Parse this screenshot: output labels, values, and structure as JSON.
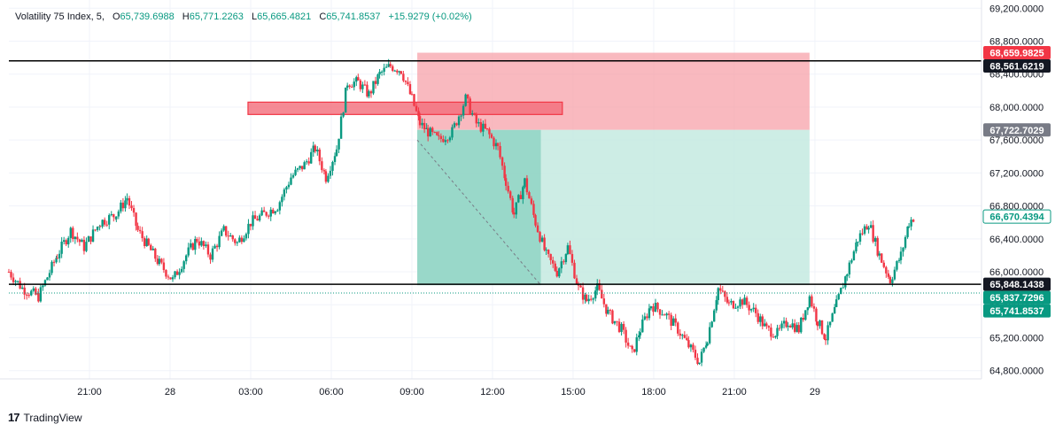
{
  "legend": {
    "symbol": "Volatility 75 Index, 5,",
    "o_label": "O",
    "open": "65,739.6988",
    "h_label": "H",
    "high": "65,771.2263",
    "l_label": "L",
    "low": "65,665.4821",
    "c_label": "C",
    "close": "65,741.8537",
    "change": "+15.9279 (+0.02%)"
  },
  "brand": {
    "name": "TradingView",
    "logo_icon": "tradingview-logo-icon"
  },
  "colors": {
    "up": "#089981",
    "down": "#f23645",
    "line": "#000000",
    "stop_zone": "#f7a1a9",
    "target_zone": "#8fd3c4",
    "target_zone_light": "#c8ebe2",
    "supply_box": "#f26d7b"
  },
  "chart_data": {
    "type": "candlestick",
    "instrument": "Volatility 75 Index",
    "timeframe": "5",
    "y_axis": {
      "range": [
        64700,
        69300
      ],
      "ticks": [
        "69,200.0000",
        "68,800.0000",
        "68,400.0000",
        "68,000.0000",
        "67,600.0000",
        "67,200.0000",
        "66,800.0000",
        "66,400.0000",
        "66,000.0000",
        "65,600.0000",
        "65,200.0000",
        "64,800.0000"
      ],
      "tick_values": [
        69200,
        68800,
        68400,
        68000,
        67600,
        67200,
        66800,
        66400,
        66000,
        65600,
        65200,
        64800
      ]
    },
    "x_axis": {
      "ticks": [
        "21:00",
        "28",
        "03:00",
        "06:00",
        "09:00",
        "12:00",
        "15:00",
        "18:00",
        "21:00",
        "29"
      ],
      "tick_hours": [
        21,
        24,
        27,
        30,
        33,
        36,
        39,
        42,
        45,
        48
      ],
      "range_hours": [
        18.0,
        54.2
      ]
    },
    "horizontal_lines": [
      {
        "price": 68561.6219,
        "label": "68,561.6219"
      },
      {
        "price": 65848.1438,
        "label": "65,848.1438"
      }
    ],
    "price_labels": [
      {
        "price": 68659.9825,
        "label": "68,659.9825",
        "style": "red"
      },
      {
        "price": 68561.6219,
        "label": "68,561.6219",
        "style": "black"
      },
      {
        "price": 67722.7029,
        "label": "67,722.7029",
        "style": "gray"
      },
      {
        "price": 66670.4394,
        "label": "66,670.4394",
        "style": "green-outline"
      },
      {
        "price": 65848.1438,
        "label": "65,848.1438",
        "style": "black"
      },
      {
        "price": 65837.7296,
        "label": "65,837.7296",
        "style": "green"
      },
      {
        "price": 65741.8537,
        "label": "65,741.8537",
        "style": "green"
      }
    ],
    "short_position": {
      "entry": 67722.7029,
      "stop": 68659.9825,
      "target": 65837.7296,
      "start_hour": 33.2,
      "end_hour": 47.8,
      "filled_until_hour": 37.8
    },
    "supply_zone": {
      "top": 68060,
      "bottom": 67910,
      "start_hour": 26.9,
      "end_hour": 38.6
    },
    "ohlc_path": [
      [
        18.0,
        66000
      ],
      [
        18.5,
        65800
      ],
      [
        19.1,
        65700
      ],
      [
        19.8,
        66200
      ],
      [
        20.3,
        66500
      ],
      [
        20.8,
        66300
      ],
      [
        21.4,
        66600
      ],
      [
        22.0,
        66700
      ],
      [
        22.4,
        66900
      ],
      [
        22.8,
        66500
      ],
      [
        23.2,
        66300
      ],
      [
        23.6,
        66100
      ],
      [
        24.1,
        65900
      ],
      [
        24.6,
        66200
      ],
      [
        25.0,
        66400
      ],
      [
        25.5,
        66200
      ],
      [
        26.0,
        66500
      ],
      [
        26.5,
        66350
      ],
      [
        27.0,
        66600
      ],
      [
        27.5,
        66700
      ],
      [
        28.0,
        66800
      ],
      [
        28.5,
        67150
      ],
      [
        29.0,
        67300
      ],
      [
        29.4,
        67500
      ],
      [
        29.8,
        67150
      ],
      [
        30.2,
        67500
      ],
      [
        30.6,
        68300
      ],
      [
        31.0,
        68300
      ],
      [
        31.4,
        68150
      ],
      [
        31.8,
        68400
      ],
      [
        32.2,
        68500
      ],
      [
        32.6,
        68450
      ],
      [
        33.0,
        68100
      ],
      [
        33.3,
        67800
      ],
      [
        33.6,
        67700
      ],
      [
        34.0,
        67600
      ],
      [
        34.5,
        67700
      ],
      [
        35.0,
        68100
      ],
      [
        35.4,
        67800
      ],
      [
        35.8,
        67700
      ],
      [
        36.2,
        67500
      ],
      [
        36.5,
        67100
      ],
      [
        36.8,
        66700
      ],
      [
        37.2,
        67100
      ],
      [
        37.6,
        66600
      ],
      [
        38.0,
        66200
      ],
      [
        38.4,
        66000
      ],
      [
        38.8,
        66300
      ],
      [
        39.2,
        65800
      ],
      [
        39.5,
        65650
      ],
      [
        39.9,
        65800
      ],
      [
        40.3,
        65500
      ],
      [
        40.8,
        65300
      ],
      [
        41.2,
        65000
      ],
      [
        41.5,
        65300
      ],
      [
        41.9,
        65600
      ],
      [
        42.4,
        65500
      ],
      [
        42.9,
        65300
      ],
      [
        43.3,
        65100
      ],
      [
        43.7,
        64900
      ],
      [
        44.0,
        65200
      ],
      [
        44.4,
        65800
      ],
      [
        44.8,
        65600
      ],
      [
        45.3,
        65650
      ],
      [
        45.8,
        65500
      ],
      [
        46.2,
        65300
      ],
      [
        46.6,
        65250
      ],
      [
        47.0,
        65400
      ],
      [
        47.4,
        65300
      ],
      [
        47.8,
        65700
      ],
      [
        48.1,
        65400
      ],
      [
        48.4,
        65200
      ],
      [
        48.8,
        65600
      ],
      [
        49.2,
        66000
      ],
      [
        49.6,
        66400
      ],
      [
        50.0,
        66600
      ],
      [
        50.4,
        66200
      ],
      [
        50.8,
        65900
      ],
      [
        51.2,
        66200
      ],
      [
        51.5,
        66600
      ],
      [
        51.7,
        66670
      ]
    ]
  }
}
